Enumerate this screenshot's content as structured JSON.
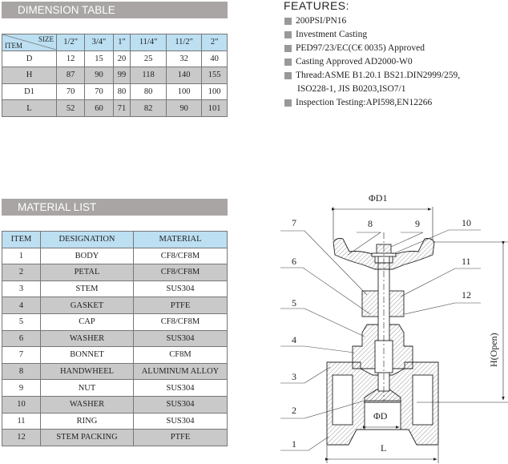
{
  "dimension_table": {
    "title": "DIMENSION TABLE",
    "corner_size": "SIZE",
    "corner_item": "ITEM",
    "sizes": [
      "1/2\"",
      "3/4\"",
      "1\"",
      "11/4\"",
      "11/2\"",
      "2\""
    ],
    "rows": [
      {
        "item": "D",
        "values": [
          "12",
          "15",
          "20",
          "25",
          "32",
          "40"
        ]
      },
      {
        "item": "H",
        "values": [
          "87",
          "90",
          "99",
          "118",
          "140",
          "155"
        ]
      },
      {
        "item": "D1",
        "values": [
          "70",
          "70",
          "80",
          "80",
          "100",
          "100"
        ]
      },
      {
        "item": "L",
        "values": [
          "52",
          "60",
          "71",
          "82",
          "90",
          "101"
        ]
      }
    ]
  },
  "features": {
    "title": "FEATURES:",
    "items": [
      [
        "200PSI/PN16"
      ],
      [
        "Investment Casting"
      ],
      [
        "PED97/23/EC(C€ 0035) Approved"
      ],
      [
        "Casting Approved AD2000-W0"
      ],
      [
        "Thread:ASME B1.20.1 BS21.DIN2999/259,",
        "ISO228-1, JIS B0203,ISO7/1"
      ],
      [
        "Inspection Testing:API598,EN12266"
      ]
    ]
  },
  "material_list": {
    "title": "MATERIAL LIST",
    "headers": [
      "ITEM",
      "DESIGNATION",
      "MATERIAL"
    ],
    "rows": [
      [
        "1",
        "BODY",
        "CF8/CF8M"
      ],
      [
        "2",
        "PETAL",
        "CF8/CF8M"
      ],
      [
        "3",
        "STEM",
        "SUS304"
      ],
      [
        "4",
        "GASKET",
        "PTFE"
      ],
      [
        "5",
        "CAP",
        "CF8/CF8M"
      ],
      [
        "6",
        "WASHER",
        "SUS304"
      ],
      [
        "7",
        "BONNET",
        "CF8M"
      ],
      [
        "8",
        "HANDWHEEL",
        "ALUMINUM ALLOY"
      ],
      [
        "9",
        "NUT",
        "SUS304"
      ],
      [
        "10",
        "WASHER",
        "SUS304"
      ],
      [
        "11",
        "RING",
        "SUS304"
      ],
      [
        "12",
        "STEM PACKING",
        "PTFE"
      ]
    ]
  },
  "diagram": {
    "dim_d1": "ΦD1",
    "dim_d": "ΦD",
    "dim_l": "L",
    "dim_h": "H(Open)",
    "part_numbers": [
      "1",
      "2",
      "3",
      "4",
      "5",
      "6",
      "7",
      "8",
      "9",
      "10",
      "11",
      "12"
    ]
  },
  "colors": {
    "banner": "#a9a5a5",
    "header_row": "#bcdff2",
    "alt_row": "#c9c9c9"
  }
}
